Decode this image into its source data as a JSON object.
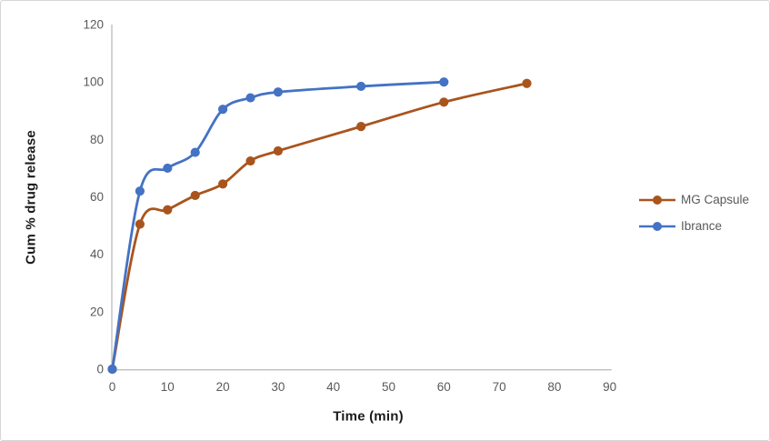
{
  "chart_data": {
    "type": "line",
    "title": "",
    "xlabel": "Time (min)",
    "ylabel": "Cum % drug release",
    "xlim": [
      0,
      90
    ],
    "ylim": [
      0,
      120
    ],
    "x_ticks": [
      0,
      10,
      20,
      30,
      40,
      50,
      60,
      70,
      80,
      90
    ],
    "y_ticks": [
      0,
      20,
      40,
      60,
      80,
      100,
      120
    ],
    "grid": false,
    "smooth_lines": true,
    "marker": "circle",
    "legend_position": "right",
    "axis_color": "#bfbfbf",
    "tick_label_color": "#595959",
    "series": [
      {
        "name": "MG Capsule",
        "color": "#a9541d",
        "x": [
          0,
          5,
          10,
          15,
          20,
          25,
          30,
          45,
          60,
          75
        ],
        "values": [
          0,
          50.5,
          55.5,
          60.5,
          64.5,
          72.5,
          76,
          84.5,
          93,
          99.5
        ]
      },
      {
        "name": "Ibrance",
        "color": "#4472c4",
        "x": [
          0,
          5,
          10,
          15,
          20,
          25,
          30,
          45,
          60
        ],
        "values": [
          0,
          62,
          70,
          75.5,
          90.5,
          94.5,
          96.5,
          98.5,
          100
        ]
      }
    ]
  }
}
